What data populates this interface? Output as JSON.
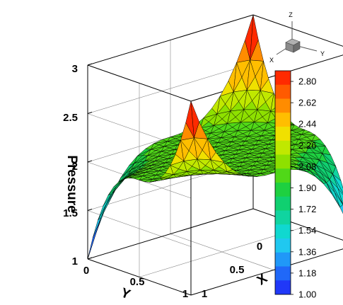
{
  "chart_data": {
    "type": "surface",
    "title": "",
    "xlabel": "X",
    "ylabel": "Y",
    "zlabel": "Pressure",
    "xlim": [
      0,
      1
    ],
    "ylim": [
      0,
      1
    ],
    "zlim": [
      1,
      3
    ],
    "x_ticks": [
      "0",
      "0.5",
      "1"
    ],
    "y_ticks": [
      "0",
      "0.5",
      "1"
    ],
    "z_ticks": [
      "1",
      "1.5",
      "2",
      "2.5",
      "3"
    ],
    "surface_corners": [
      {
        "x": 0,
        "y": 0,
        "pressure": 3.0
      },
      {
        "x": 1,
        "y": 1,
        "pressure": 1.0
      },
      {
        "x": 0,
        "y": 1,
        "pressure": 2.0
      },
      {
        "x": 1,
        "y": 0,
        "pressure": 2.0
      }
    ],
    "surface_center": {
      "x": 0.5,
      "y": 0.5,
      "pressure": 2.0
    },
    "mesh": "triangulated",
    "grid": true,
    "colorbar": {
      "placement": "right",
      "min": 1.0,
      "max": 2.89,
      "labels": [
        "2.80",
        "2.62",
        "2.44",
        "2.26",
        "2.08",
        "1.90",
        "1.72",
        "1.54",
        "1.36",
        "1.18",
        "1.00"
      ],
      "colors": [
        "#ff2a00",
        "#ff5a00",
        "#ff8c00",
        "#ffbe00",
        "#f0e000",
        "#c0e800",
        "#8ee000",
        "#50d818",
        "#1ed040",
        "#10d070",
        "#10d4a0",
        "#10d8d0",
        "#20c8f0",
        "#2098f8",
        "#2068f8",
        "#2038f8"
      ]
    },
    "orientation_triad": {
      "axes": [
        "Z",
        "X",
        "Y"
      ]
    }
  }
}
